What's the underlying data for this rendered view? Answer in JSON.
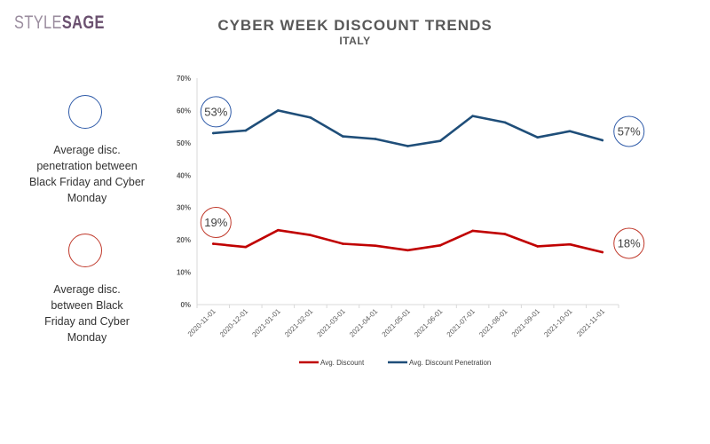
{
  "brand": {
    "part1": "STYLE",
    "part2": "SAGE"
  },
  "title": "CYBER WEEK DISCOUNT TRENDS",
  "subtitle": "ITALY",
  "side_notes": [
    {
      "text": "Average disc. penetration between Black Friday and Cyber Monday",
      "color": "#2e5aa8"
    },
    {
      "text": "Average disc. between Black Friday and Cyber Monday",
      "color": "#c0392b"
    }
  ],
  "chart_data": {
    "type": "line",
    "x": [
      "2020-11-01",
      "2020-12-01",
      "2021-01-01",
      "2021-02-01",
      "2021-03-01",
      "2021-04-01",
      "2021-05-01",
      "2021-06-01",
      "2021-07-01",
      "2021-08-01",
      "2021-09-01",
      "2021-10-01",
      "2021-11-01"
    ],
    "series": [
      {
        "name": "Avg. Discount",
        "color": "#c00000",
        "values": [
          18.8,
          17.8,
          23.0,
          21.5,
          18.8,
          18.2,
          16.8,
          18.3,
          22.8,
          21.8,
          18.0,
          18.6,
          16.2
        ]
      },
      {
        "name": "Avg. Discount Penetration",
        "color": "#1f4e79",
        "values": [
          53.0,
          53.8,
          60.0,
          57.8,
          52.0,
          51.2,
          49.0,
          50.6,
          58.3,
          56.3,
          51.7,
          53.6,
          50.8
        ]
      }
    ],
    "y_ticks": [
      "0%",
      "10%",
      "20%",
      "30%",
      "40%",
      "50%",
      "60%",
      "70%"
    ],
    "ylim": [
      0,
      70
    ],
    "grid": false,
    "legend_position": "bottom",
    "callouts": [
      {
        "label": "53%",
        "series": 1,
        "side": "left",
        "color": "#2e5aa8"
      },
      {
        "label": "57%",
        "series": 1,
        "side": "right",
        "color": "#2e5aa8"
      },
      {
        "label": "19%",
        "series": 0,
        "side": "left",
        "color": "#c0392b"
      },
      {
        "label": "18%",
        "series": 0,
        "side": "right",
        "color": "#c0392b"
      }
    ]
  }
}
